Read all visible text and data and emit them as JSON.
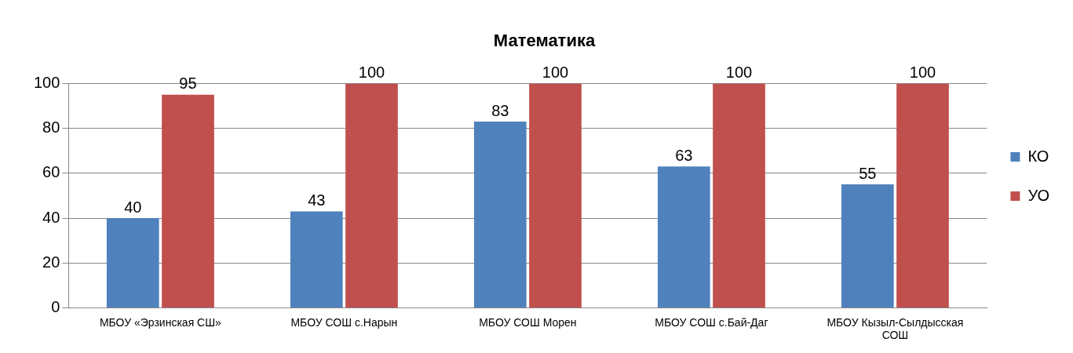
{
  "chart_data": {
    "type": "bar",
    "title": "Математика",
    "categories": [
      "МБОУ «Эрзинская СШ»",
      "МБОУ СОШ с.Нарын",
      "МБОУ СОШ Морен",
      "МБОУ СОШ с.Бай-Даг",
      "МБОУ Кызыл-Сылдысская СОШ"
    ],
    "series": [
      {
        "name": "КО",
        "color": "#4f81bd",
        "values": [
          40,
          43,
          83,
          63,
          55
        ]
      },
      {
        "name": "УО",
        "color": "#c0504d",
        "values": [
          95,
          100,
          100,
          100,
          100
        ]
      }
    ],
    "ylim": [
      0,
      100
    ],
    "yticks": [
      0,
      20,
      40,
      60,
      80,
      100
    ],
    "grid": "y",
    "legend": "right",
    "data_labels": true
  }
}
